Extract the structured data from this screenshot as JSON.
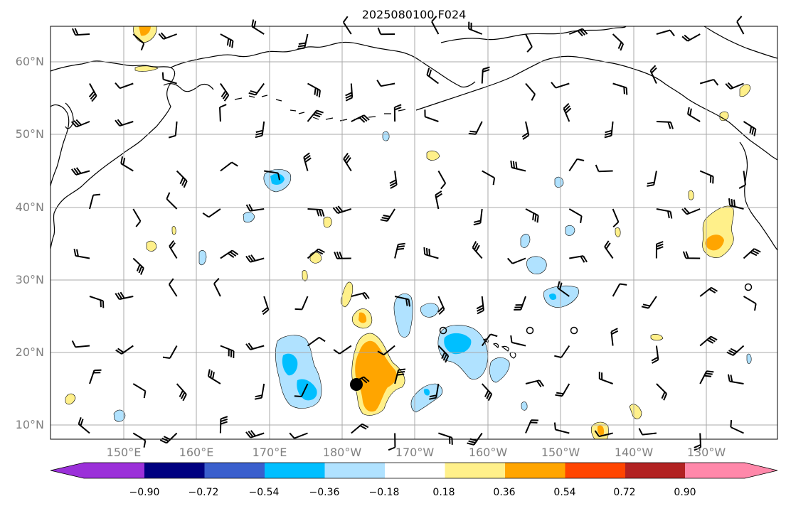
{
  "title": "2025080100 F024",
  "lat_labels": [
    "10°N",
    "20°N",
    "30°N",
    "40°N",
    "50°N",
    "60°N"
  ],
  "lon_labels": [
    "150°E",
    "160°E",
    "170°E",
    "180°W",
    "170°W",
    "160°W",
    "150°W",
    "140°W",
    "130°W"
  ],
  "colorbar": {
    "tick_labels": [
      "−0.90",
      "−0.72",
      "−0.54",
      "−0.36",
      "−0.18",
      "0.18",
      "0.36",
      "0.54",
      "0.72",
      "0.90"
    ],
    "colors": [
      "#9b30d9",
      "#000080",
      "#3a5fcd",
      "#00bfff",
      "#b0e2ff",
      "#ffffff",
      "#fff08a",
      "#ffa500",
      "#ff4500",
      "#b22222",
      "#ff88aa"
    ]
  },
  "map": {
    "region": "North Pacific",
    "lat_range": [
      8,
      65
    ],
    "lon_range_deg_east": [
      140,
      240
    ],
    "field_colors": {
      "positive_light": "#fff08a",
      "positive_strong": "#ffa500",
      "negative_light": "#b0e2ff",
      "negative_strong": "#00bfff"
    },
    "marker": "storm-center-dot"
  }
}
